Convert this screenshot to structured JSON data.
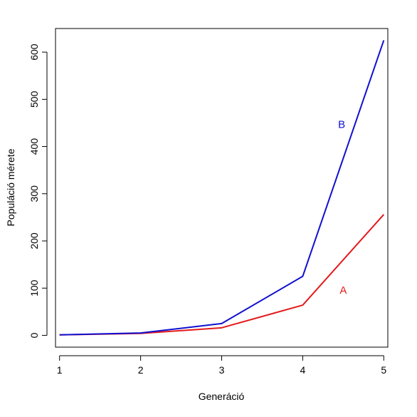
{
  "chart_data": {
    "type": "line",
    "title": "",
    "xlabel": "Generáció",
    "ylabel": "Populáció mérete",
    "x": [
      1,
      2,
      3,
      4,
      5
    ],
    "xlim": [
      0.95,
      5.05
    ],
    "ylim": [
      -25,
      650
    ],
    "xticks": [
      1,
      2,
      3,
      4,
      5
    ],
    "yticks": [
      0,
      100,
      200,
      300,
      400,
      500,
      600
    ],
    "grid": false,
    "series": [
      {
        "name": "A",
        "color": "#e31a1c",
        "values": [
          1,
          4,
          16,
          64,
          256
        ]
      },
      {
        "name": "B",
        "color": "#1010d0",
        "values": [
          1,
          5,
          25,
          125,
          625
        ]
      }
    ],
    "annotations": [
      {
        "text": "B",
        "x": 4.48,
        "y": 447,
        "color": "#1010d0"
      },
      {
        "text": "A",
        "x": 4.5,
        "y": 96,
        "color": "#e31a1c"
      }
    ]
  }
}
